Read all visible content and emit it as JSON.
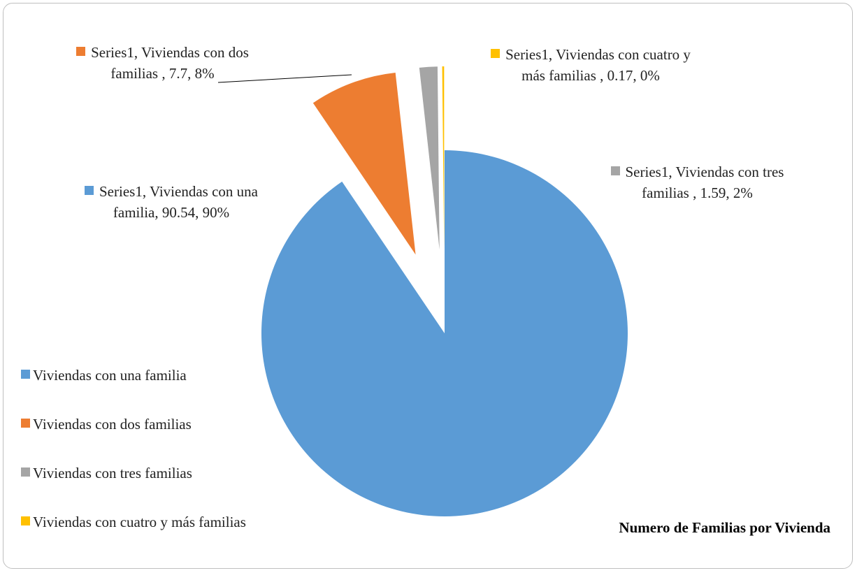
{
  "chart_data": {
    "type": "pie",
    "title": "Numero de Familias por Vivienda",
    "categories": [
      "Viviendas con una familia",
      "Viviendas con dos familias",
      "Viviendas con tres familias",
      "Viviendas con cuatro y más familias"
    ],
    "values": [
      90.54,
      7.7,
      1.59,
      0.17
    ],
    "value_labels": [
      "Series1, Viviendas con una familia, 90.54, 90%",
      "Series1, Viviendas con dos familias , 7.7, 8%",
      "Series1, Viviendas con tres familias , 1.59, 2%",
      "Series1, Viviendas con cuatro y más familias , 0.17, 0%"
    ],
    "colors": [
      "#5b9bd5",
      "#ed7d31",
      "#a5a5a5",
      "#ffc000"
    ],
    "legend": "left"
  }
}
